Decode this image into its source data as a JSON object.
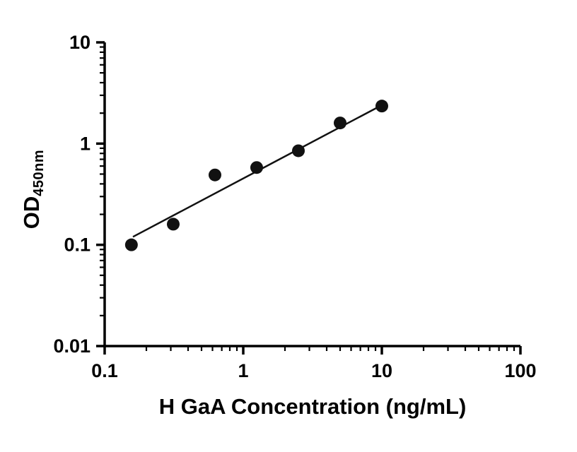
{
  "chart_data": {
    "type": "scatter",
    "title": "",
    "xlabel": "H GaA Concentration (ng/mL)",
    "ylabel_main": "OD",
    "ylabel_subscript": "450nm",
    "x_scale": "log",
    "y_scale": "log",
    "xlim": [
      0.1,
      100
    ],
    "ylim": [
      0.01,
      10
    ],
    "x_tick_labels": [
      "0.1",
      "1",
      "10",
      "100"
    ],
    "x_tick_values": [
      0.1,
      1,
      10,
      100
    ],
    "y_tick_labels": [
      "0.01",
      "0.1",
      "1",
      "10"
    ],
    "y_tick_values": [
      0.01,
      0.1,
      1,
      10
    ],
    "grid": "off",
    "legend": "none",
    "points": [
      {
        "x": 0.156,
        "y": 0.1
      },
      {
        "x": 0.3125,
        "y": 0.16
      },
      {
        "x": 0.625,
        "y": 0.49
      },
      {
        "x": 1.25,
        "y": 0.58
      },
      {
        "x": 2.5,
        "y": 0.85
      },
      {
        "x": 5.0,
        "y": 1.6
      },
      {
        "x": 10.0,
        "y": 2.35
      }
    ],
    "fit_line": {
      "x1": 0.16,
      "y1": 0.12,
      "x2": 10.0,
      "y2": 2.4
    },
    "marker_color": "#111111",
    "line_color": "#111111",
    "axis_color": "#000000"
  }
}
